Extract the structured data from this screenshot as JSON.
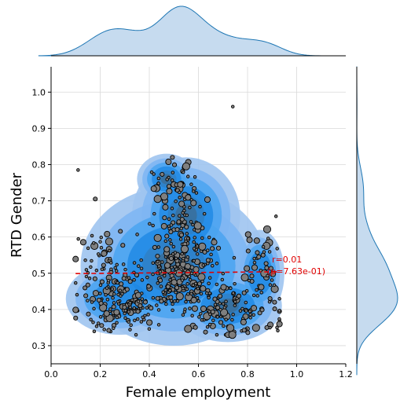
{
  "chart_data": {
    "type": "scatter",
    "xlabel": "Female employment",
    "ylabel": "RTD Gender",
    "xlim": [
      0.0,
      1.2
    ],
    "ylim": [
      0.25,
      1.07
    ],
    "x_ticks": [
      "0.0",
      "0.2",
      "0.4",
      "0.6",
      "0.8",
      "1.0",
      "1.2"
    ],
    "y_ticks": [
      "0.3",
      "0.4",
      "0.5",
      "0.6",
      "0.7",
      "0.8",
      "0.9",
      "1.0"
    ],
    "grid": true,
    "regression": {
      "intercept": 0.4985,
      "slope": 0.006,
      "x_range": [
        0.1,
        0.92
      ],
      "color": "#e00000"
    },
    "annotations": [
      "r=0.01",
      "(p=7.63e-01)"
    ],
    "colors": {
      "scatter_fill": "#7f7f7f",
      "scatter_edge": "#000000",
      "kde_light": "#9ec4f0",
      "kde_mid": "#4aa3f0",
      "kde_dark": "#1e88e5",
      "kde_core": "#3a6e9a",
      "marginal_fill": "#c6dbef",
      "marginal_line": "#1f77b4",
      "regression": "#e00000"
    },
    "notable_points": [
      {
        "x": 0.74,
        "y": 0.96
      },
      {
        "x": 0.11,
        "y": 0.785
      },
      {
        "x": 0.18,
        "y": 0.705
      },
      {
        "x": 0.92,
        "y": 0.35
      },
      {
        "x": 0.91,
        "y": 0.42
      }
    ]
  }
}
